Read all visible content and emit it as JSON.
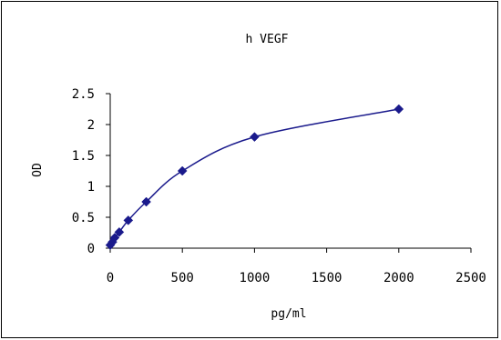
{
  "chart_data": {
    "type": "line",
    "title": "h VEGF",
    "xlabel": "pg/ml",
    "ylabel": "OD",
    "xlim": [
      0,
      2500
    ],
    "ylim": [
      0,
      2.5
    ],
    "x_ticks": [
      0,
      500,
      1000,
      1500,
      2000,
      2500
    ],
    "x_tick_labels": [
      "0",
      "500",
      "1000",
      "1500",
      "2000",
      "2500"
    ],
    "y_ticks": [
      0,
      0.5,
      1,
      1.5,
      2,
      2.5
    ],
    "y_tick_labels": [
      "0",
      "0.5",
      "1",
      "1.5",
      "2",
      "2.5"
    ],
    "grid": false,
    "legend": "none",
    "series": [
      {
        "color": "#1a1a8c",
        "marker": "diamond",
        "smooth": true,
        "points": [
          {
            "x": 0,
            "y": 0.05
          },
          {
            "x": 15.6,
            "y": 0.1
          },
          {
            "x": 31.2,
            "y": 0.17
          },
          {
            "x": 62.5,
            "y": 0.26
          },
          {
            "x": 125,
            "y": 0.45
          },
          {
            "x": 250,
            "y": 0.75
          },
          {
            "x": 500,
            "y": 1.25
          },
          {
            "x": 1000,
            "y": 1.8
          },
          {
            "x": 2000,
            "y": 2.25
          }
        ]
      }
    ]
  }
}
